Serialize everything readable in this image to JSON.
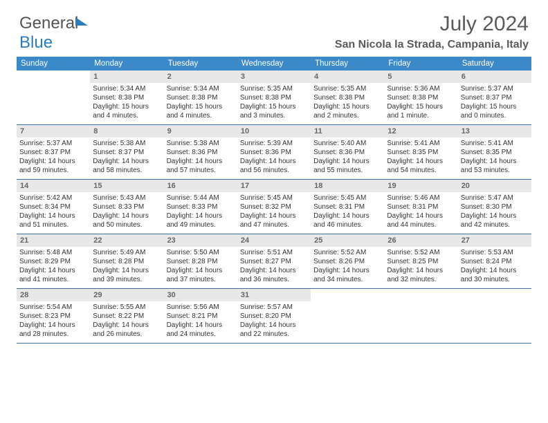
{
  "logo": {
    "part1": "General",
    "part2": "Blue"
  },
  "title": "July 2024",
  "location": "San Nicola la Strada, Campania, Italy",
  "colors": {
    "header_bg": "#3b89c9",
    "header_text": "#ffffff",
    "daynum_bg": "#e8e8e8",
    "border": "#3b6fa0",
    "logo_blue": "#2b7bbf"
  },
  "weekdays": [
    "Sunday",
    "Monday",
    "Tuesday",
    "Wednesday",
    "Thursday",
    "Friday",
    "Saturday"
  ],
  "weeks": [
    [
      {
        "blank": true
      },
      {
        "n": "1",
        "sr": "5:34 AM",
        "ss": "8:38 PM",
        "d1": "Daylight: 15 hours",
        "d2": "and 4 minutes."
      },
      {
        "n": "2",
        "sr": "5:34 AM",
        "ss": "8:38 PM",
        "d1": "Daylight: 15 hours",
        "d2": "and 4 minutes."
      },
      {
        "n": "3",
        "sr": "5:35 AM",
        "ss": "8:38 PM",
        "d1": "Daylight: 15 hours",
        "d2": "and 3 minutes."
      },
      {
        "n": "4",
        "sr": "5:35 AM",
        "ss": "8:38 PM",
        "d1": "Daylight: 15 hours",
        "d2": "and 2 minutes."
      },
      {
        "n": "5",
        "sr": "5:36 AM",
        "ss": "8:38 PM",
        "d1": "Daylight: 15 hours",
        "d2": "and 1 minute."
      },
      {
        "n": "6",
        "sr": "5:37 AM",
        "ss": "8:37 PM",
        "d1": "Daylight: 15 hours",
        "d2": "and 0 minutes."
      }
    ],
    [
      {
        "n": "7",
        "sr": "5:37 AM",
        "ss": "8:37 PM",
        "d1": "Daylight: 14 hours",
        "d2": "and 59 minutes."
      },
      {
        "n": "8",
        "sr": "5:38 AM",
        "ss": "8:37 PM",
        "d1": "Daylight: 14 hours",
        "d2": "and 58 minutes."
      },
      {
        "n": "9",
        "sr": "5:38 AM",
        "ss": "8:36 PM",
        "d1": "Daylight: 14 hours",
        "d2": "and 57 minutes."
      },
      {
        "n": "10",
        "sr": "5:39 AM",
        "ss": "8:36 PM",
        "d1": "Daylight: 14 hours",
        "d2": "and 56 minutes."
      },
      {
        "n": "11",
        "sr": "5:40 AM",
        "ss": "8:36 PM",
        "d1": "Daylight: 14 hours",
        "d2": "and 55 minutes."
      },
      {
        "n": "12",
        "sr": "5:41 AM",
        "ss": "8:35 PM",
        "d1": "Daylight: 14 hours",
        "d2": "and 54 minutes."
      },
      {
        "n": "13",
        "sr": "5:41 AM",
        "ss": "8:35 PM",
        "d1": "Daylight: 14 hours",
        "d2": "and 53 minutes."
      }
    ],
    [
      {
        "n": "14",
        "sr": "5:42 AM",
        "ss": "8:34 PM",
        "d1": "Daylight: 14 hours",
        "d2": "and 51 minutes."
      },
      {
        "n": "15",
        "sr": "5:43 AM",
        "ss": "8:33 PM",
        "d1": "Daylight: 14 hours",
        "d2": "and 50 minutes."
      },
      {
        "n": "16",
        "sr": "5:44 AM",
        "ss": "8:33 PM",
        "d1": "Daylight: 14 hours",
        "d2": "and 49 minutes."
      },
      {
        "n": "17",
        "sr": "5:45 AM",
        "ss": "8:32 PM",
        "d1": "Daylight: 14 hours",
        "d2": "and 47 minutes."
      },
      {
        "n": "18",
        "sr": "5:45 AM",
        "ss": "8:31 PM",
        "d1": "Daylight: 14 hours",
        "d2": "and 46 minutes."
      },
      {
        "n": "19",
        "sr": "5:46 AM",
        "ss": "8:31 PM",
        "d1": "Daylight: 14 hours",
        "d2": "and 44 minutes."
      },
      {
        "n": "20",
        "sr": "5:47 AM",
        "ss": "8:30 PM",
        "d1": "Daylight: 14 hours",
        "d2": "and 42 minutes."
      }
    ],
    [
      {
        "n": "21",
        "sr": "5:48 AM",
        "ss": "8:29 PM",
        "d1": "Daylight: 14 hours",
        "d2": "and 41 minutes."
      },
      {
        "n": "22",
        "sr": "5:49 AM",
        "ss": "8:28 PM",
        "d1": "Daylight: 14 hours",
        "d2": "and 39 minutes."
      },
      {
        "n": "23",
        "sr": "5:50 AM",
        "ss": "8:28 PM",
        "d1": "Daylight: 14 hours",
        "d2": "and 37 minutes."
      },
      {
        "n": "24",
        "sr": "5:51 AM",
        "ss": "8:27 PM",
        "d1": "Daylight: 14 hours",
        "d2": "and 36 minutes."
      },
      {
        "n": "25",
        "sr": "5:52 AM",
        "ss": "8:26 PM",
        "d1": "Daylight: 14 hours",
        "d2": "and 34 minutes."
      },
      {
        "n": "26",
        "sr": "5:52 AM",
        "ss": "8:25 PM",
        "d1": "Daylight: 14 hours",
        "d2": "and 32 minutes."
      },
      {
        "n": "27",
        "sr": "5:53 AM",
        "ss": "8:24 PM",
        "d1": "Daylight: 14 hours",
        "d2": "and 30 minutes."
      }
    ],
    [
      {
        "n": "28",
        "sr": "5:54 AM",
        "ss": "8:23 PM",
        "d1": "Daylight: 14 hours",
        "d2": "and 28 minutes."
      },
      {
        "n": "29",
        "sr": "5:55 AM",
        "ss": "8:22 PM",
        "d1": "Daylight: 14 hours",
        "d2": "and 26 minutes."
      },
      {
        "n": "30",
        "sr": "5:56 AM",
        "ss": "8:21 PM",
        "d1": "Daylight: 14 hours",
        "d2": "and 24 minutes."
      },
      {
        "n": "31",
        "sr": "5:57 AM",
        "ss": "8:20 PM",
        "d1": "Daylight: 14 hours",
        "d2": "and 22 minutes."
      },
      {
        "blank": true
      },
      {
        "blank": true
      },
      {
        "blank": true
      }
    ]
  ],
  "labels": {
    "sunrise": "Sunrise: ",
    "sunset": "Sunset: "
  }
}
